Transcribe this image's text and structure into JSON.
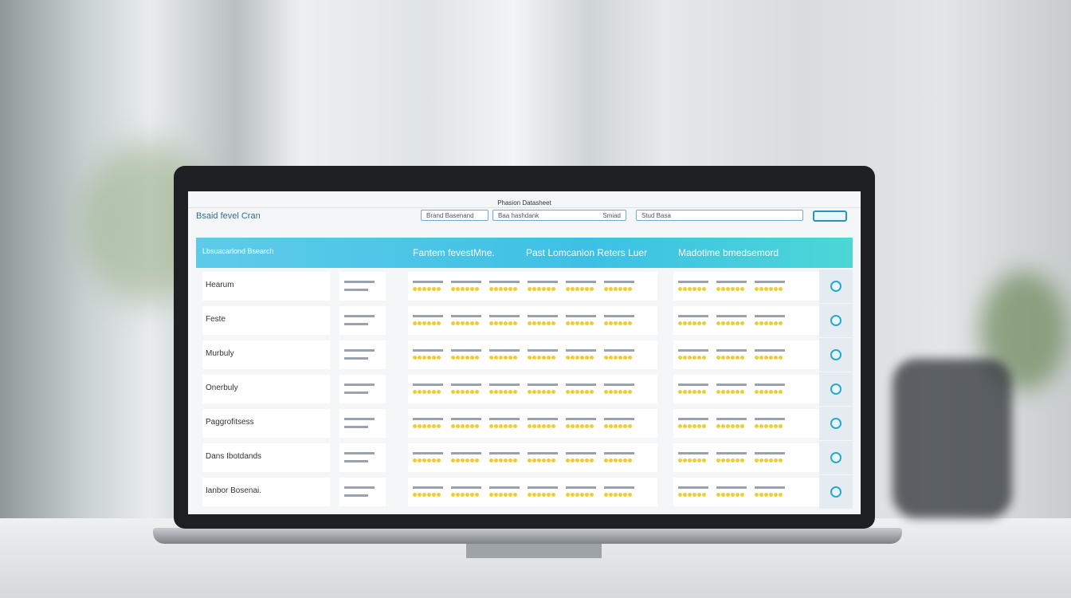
{
  "header": {
    "title": "Phasion Datasheet",
    "brand": "Bsaid fevel Cran",
    "search": [
      "Brand Basenand",
      "Baa hashdank",
      "Smiad",
      "Stud Basa"
    ]
  },
  "table": {
    "header_cells": [
      "Lbsuacarlond Bsearch",
      "Fantem fevestMne.",
      "Past Lomcanion Reters Luer",
      "Madotime bmedsemord"
    ],
    "rows": [
      "Hearum",
      "Feste",
      "Murbuly",
      "Onerbuly",
      "Paggrofitsess",
      "Dans Ibotdands",
      "Ianbor Bosenai."
    ]
  }
}
